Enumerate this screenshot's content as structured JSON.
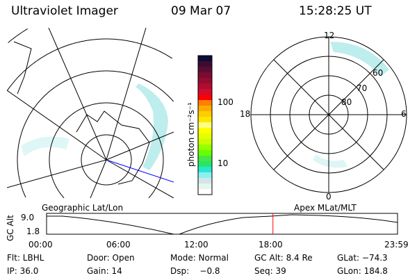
{
  "header": {
    "instrument": "Ultraviolet Imager",
    "date": "09 Mar 07",
    "time": "15:28:25 UT"
  },
  "colorbar": {
    "unit_label": "photon cm⁻²s⁻¹",
    "ticks": [
      "100",
      "10"
    ],
    "colors": [
      "#0c0c3a",
      "#3a0c30",
      "#5a0c34",
      "#7a0c30",
      "#940c30",
      "#b00c30",
      "#d00c30",
      "#ff0000",
      "#ff8000",
      "#ffaa00",
      "#ffcc00",
      "#ffe600",
      "#ffff80",
      "#ffff00",
      "#e6ff00",
      "#c8ff00",
      "#96ff00",
      "#64ff00",
      "#46e646",
      "#28e664",
      "#28e6d2",
      "#8cf0f0",
      "#d2e6e6",
      "#e6f5f0",
      "#ffffff"
    ]
  },
  "polar_plot": {
    "mlt_labels": [
      "12",
      "18",
      "6",
      "0"
    ],
    "mlat_labels": [
      "60",
      "70",
      "80"
    ]
  },
  "map_labels": {
    "left": "Geographic Lat/Lon",
    "right": "Apex MLat/MLT"
  },
  "altitude_timeline": {
    "ylabel": "GC Alt",
    "y_ticks": [
      "9.0",
      "1.8"
    ],
    "x_ticks": [
      "00:00",
      "06:00",
      "12:00",
      "18:00",
      "23:59"
    ],
    "current_time_fraction": 0.645
  },
  "status": {
    "filter": "Flt: LBHL",
    "ip": "IP: 36.0",
    "door": "Door: Open",
    "gain": "Gain: 14",
    "mode": "Mode: Normal",
    "dsp": "Dsp:    −0.8",
    "gc_alt": "GC Alt: 8.4 Re",
    "seq": "Seq: 39",
    "glat": "GLat: −74.3",
    "glon": "GLon: 184.8"
  }
}
